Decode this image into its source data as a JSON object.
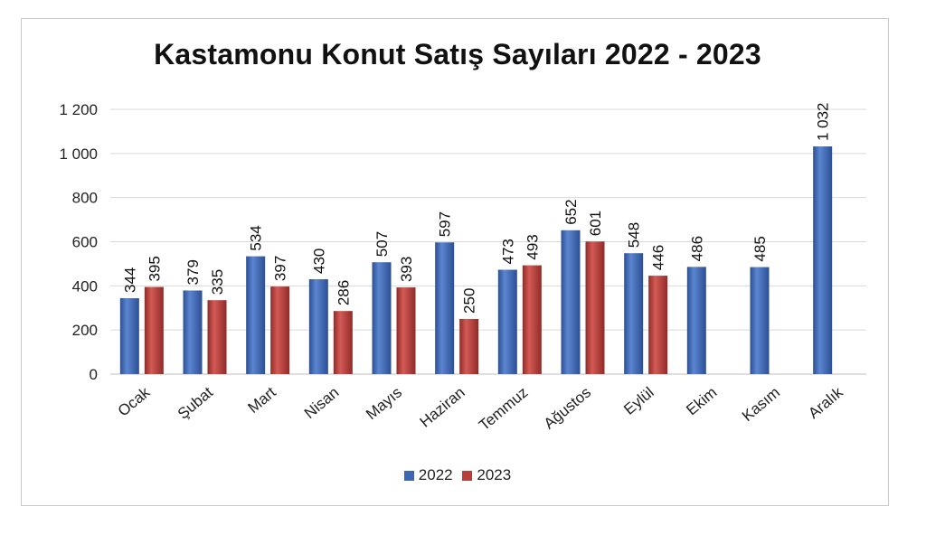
{
  "chart_data": {
    "type": "bar",
    "title": "Kastamonu Konut Satış Sayıları 2022 - 2023",
    "categories": [
      "Ocak",
      "Şubat",
      "Mart",
      "Nisan",
      "Mayıs",
      "Haziran",
      "Temmuz",
      "Ağustos",
      "Eylül",
      "Ekim",
      "Kasım",
      "Aralık"
    ],
    "series": [
      {
        "name": "2022",
        "color": "#3d67b2",
        "values": [
          344,
          379,
          534,
          430,
          507,
          597,
          473,
          652,
          548,
          486,
          485,
          1032
        ],
        "labels": [
          "344",
          "379",
          "534",
          "430",
          "507",
          "597",
          "473",
          "652",
          "548",
          "486",
          "485",
          "1 032"
        ]
      },
      {
        "name": "2023",
        "color": "#b83e3b",
        "values": [
          395,
          335,
          397,
          286,
          393,
          250,
          493,
          601,
          446,
          null,
          null,
          null
        ],
        "labels": [
          "395",
          "335",
          "397",
          "286",
          "393",
          "250",
          "493",
          "601",
          "446",
          null,
          null,
          null
        ]
      }
    ],
    "ylim": [
      0,
      1200
    ],
    "yticks": [
      0,
      200,
      400,
      600,
      800,
      1000,
      1200
    ],
    "ytick_labels": [
      "0",
      "200",
      "400",
      "600",
      "800",
      "1 000",
      "1 200"
    ],
    "xlabel": "",
    "ylabel": "",
    "grid": true,
    "legend_position": "bottom"
  }
}
